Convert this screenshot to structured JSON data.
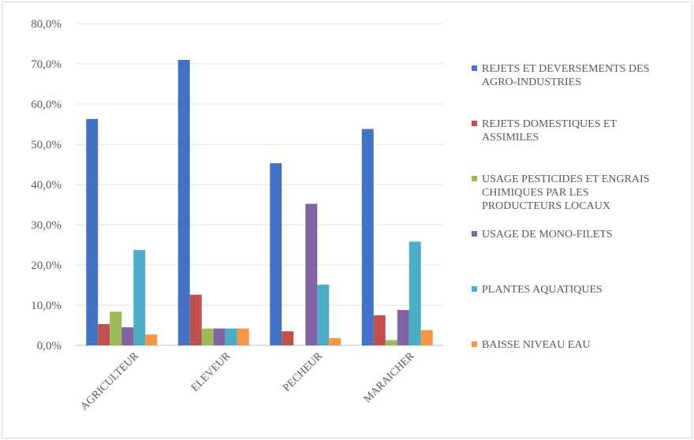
{
  "chart_data": {
    "type": "bar",
    "title": "",
    "xlabel": "",
    "ylabel": "",
    "ylim": [
      0,
      80
    ],
    "yticks": [
      "0,0%",
      "10,0%",
      "20,0%",
      "30,0%",
      "40,0%",
      "50,0%",
      "60,0%",
      "70,0%",
      "80,0%"
    ],
    "grid": true,
    "legend_position": "right",
    "categories": [
      "AGRICULTEUR",
      "ELEVEUR",
      "PECHEUR",
      "MARAICHER"
    ],
    "series": [
      {
        "name": "REJETS ET DEVERSEMENTS DES AGRO-INDUSTRIES",
        "legend_lines": [
          "REJETS ET DEVERSEMENTS DES",
          "AGRO-INDUSTRIES"
        ],
        "color": "#4472c4",
        "values": [
          56.3,
          71.0,
          45.3,
          53.8
        ]
      },
      {
        "name": "REJETS DOMESTIQUES ET ASSIMILES",
        "legend_lines": [
          "REJETS DOMESTIQUES ET",
          "ASSIMILES"
        ],
        "color": "#c0504d",
        "values": [
          5.3,
          12.6,
          3.5,
          7.5
        ]
      },
      {
        "name": "USAGE PESTICIDES ET ENGRAIS CHIMIQUES PAR LES PRODUCTEURS LOCAUX",
        "legend_lines": [
          "USAGE PESTICIDES ET ENGRAIS",
          "CHIMIQUES PAR LES",
          "PRODUCTEURS LOCAUX"
        ],
        "color": "#9bbb59",
        "values": [
          8.4,
          4.2,
          0.0,
          1.3
        ]
      },
      {
        "name": "USAGE DE MONO-FILETS",
        "legend_lines": [
          "USAGE DE MONO-FILETS"
        ],
        "color": "#8064a2",
        "values": [
          4.5,
          4.2,
          35.2,
          8.8
        ]
      },
      {
        "name": "PLANTES AQUATIQUES",
        "legend_lines": [
          "PLANTES AQUATIQUES"
        ],
        "color": "#4bacc6",
        "values": [
          23.7,
          4.2,
          15.1,
          25.8
        ]
      },
      {
        "name": "BAISSE NIVEAU EAU",
        "legend_lines": [
          "BAISSE NIVEAU EAU"
        ],
        "color": "#f79646",
        "values": [
          2.7,
          4.2,
          1.8,
          3.8
        ]
      }
    ]
  }
}
